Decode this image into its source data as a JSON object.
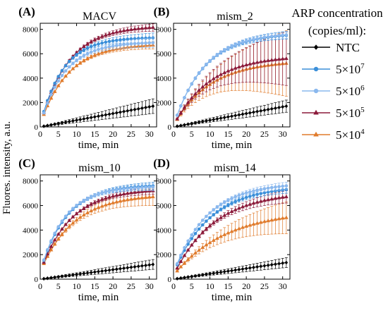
{
  "figure": {
    "ylabel": "Fluores. intensity, a.u.",
    "legend_title_line1": "ARP concentration",
    "legend_title_line2": "(copies/ml):"
  },
  "legend": [
    {
      "key": "NTC",
      "label": "NTC",
      "exp": "",
      "color": "#000000",
      "marker": "diamond"
    },
    {
      "key": "c7",
      "label": "5×10",
      "exp": "7",
      "color": "#3b8fd9",
      "marker": "circle"
    },
    {
      "key": "c6",
      "label": "5×10",
      "exp": "6",
      "color": "#8ab8ee",
      "marker": "circle"
    },
    {
      "key": "c5",
      "label": "5×10",
      "exp": "5",
      "color": "#8b1a3a",
      "marker": "triangle"
    },
    {
      "key": "c4",
      "label": "5×10",
      "exp": "4",
      "color": "#e07b2c",
      "marker": "triangle"
    }
  ],
  "chart_data": [
    {
      "type": "line",
      "panel_label": "(A)",
      "title": "MACV",
      "xlabel": "time, min",
      "xlim": [
        0,
        32
      ],
      "ylim": [
        0,
        8500
      ],
      "xticks": [
        0,
        5,
        10,
        15,
        20,
        25,
        30
      ],
      "yticks": [
        0,
        2000,
        4000,
        6000,
        8000
      ],
      "time": [
        1,
        31
      ],
      "series": [
        {
          "name": "NTC",
          "final": 1700,
          "k": 0,
          "initial": 0,
          "error_final": 600
        },
        {
          "name": "5×10⁷",
          "final": 7300,
          "k": 0.16,
          "initial": 200,
          "error_final": 400
        },
        {
          "name": "5×10⁶",
          "final": 6900,
          "k": 0.15,
          "initial": 200,
          "error_final": 400
        },
        {
          "name": "5×10⁵",
          "final": 8150,
          "k": 0.13,
          "initial": 200,
          "error_final": 300
        },
        {
          "name": "5×10⁴",
          "final": 6700,
          "k": 0.13,
          "initial": 200,
          "error_final": 300
        }
      ]
    },
    {
      "type": "line",
      "panel_label": "(B)",
      "title": "mism_2",
      "xlabel": "time, min",
      "xlim": [
        0,
        32
      ],
      "ylim": [
        0,
        8500
      ],
      "xticks": [
        0,
        5,
        10,
        15,
        20,
        25,
        30
      ],
      "yticks": [
        0,
        2000,
        4000,
        6000,
        8000
      ],
      "time": [
        1,
        31
      ],
      "series": [
        {
          "name": "NTC",
          "final": 1700,
          "k": 0,
          "initial": 0,
          "error_final": 500
        },
        {
          "name": "5×10⁷",
          "final": 7500,
          "k": 0.12,
          "initial": 100,
          "error_final": 300
        },
        {
          "name": "5×10⁶",
          "final": 7550,
          "k": 0.12,
          "initial": 100,
          "error_final": 300
        },
        {
          "name": "5×10⁵",
          "final": 5600,
          "k": 0.1,
          "initial": 100,
          "error_final": 2200
        },
        {
          "name": "5×10⁴",
          "final": 5200,
          "k": 0.1,
          "initial": 100,
          "error_final": 2700
        }
      ]
    },
    {
      "type": "line",
      "panel_label": "(C)",
      "title": "mism_10",
      "xlabel": "time, min",
      "xlim": [
        0,
        32
      ],
      "ylim": [
        0,
        8500
      ],
      "xticks": [
        0,
        5,
        10,
        15,
        20,
        25,
        30
      ],
      "yticks": [
        0,
        2000,
        4000,
        6000,
        8000
      ],
      "time": [
        1,
        31
      ],
      "series": [
        {
          "name": "NTC",
          "final": 1200,
          "k": 0,
          "initial": 0,
          "error_final": 400
        },
        {
          "name": "5×10⁷",
          "final": 7600,
          "k": 0.14,
          "initial": 600,
          "error_final": 300
        },
        {
          "name": "5×10⁶",
          "final": 7500,
          "k": 0.15,
          "initial": 600,
          "error_final": 300
        },
        {
          "name": "5×10⁵",
          "final": 7200,
          "k": 0.12,
          "initial": 600,
          "error_final": 300
        },
        {
          "name": "5×10⁴",
          "final": 6700,
          "k": 0.11,
          "initial": 600,
          "error_final": 700
        }
      ]
    },
    {
      "type": "line",
      "panel_label": "(D)",
      "title": "mism_14",
      "xlabel": "time, min",
      "xlim": [
        0,
        32
      ],
      "ylim": [
        0,
        8500
      ],
      "xticks": [
        0,
        5,
        10,
        15,
        20,
        25,
        30
      ],
      "yticks": [
        0,
        2000,
        4000,
        6000,
        8000
      ],
      "time": [
        1,
        31
      ],
      "series": [
        {
          "name": "NTC",
          "final": 1350,
          "k": 0,
          "initial": 0,
          "error_final": 400
        },
        {
          "name": "5×10⁷",
          "final": 7300,
          "k": 0.1,
          "initial": 500,
          "error_final": 300
        },
        {
          "name": "5×10⁶",
          "final": 7600,
          "k": 0.11,
          "initial": 500,
          "error_final": 300
        },
        {
          "name": "5×10⁵",
          "final": 6700,
          "k": 0.09,
          "initial": 300,
          "error_final": 500
        },
        {
          "name": "5×10⁴",
          "final": 5000,
          "k": 0.07,
          "initial": 300,
          "error_final": 1300
        }
      ]
    }
  ]
}
